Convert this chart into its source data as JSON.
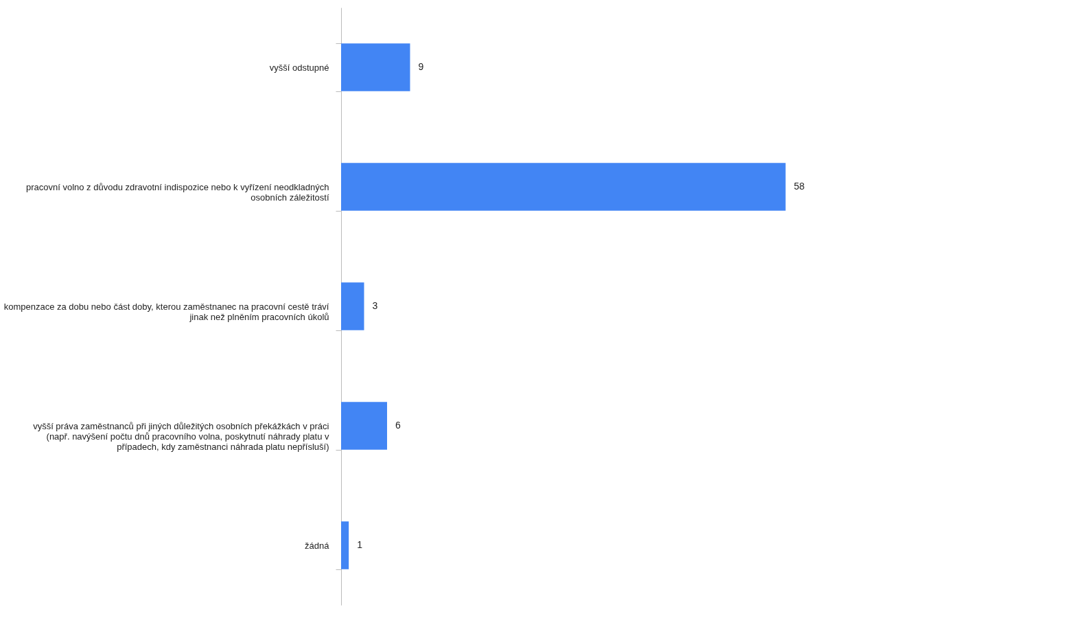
{
  "chart_data": {
    "type": "bar",
    "orientation": "horizontal",
    "categories": [
      "vyšší odstupné",
      "pracovní volno z důvodu zdravotní indispozice nebo k vyřízení neodkladných osobních záležitostí",
      "kompenzace za dobu nebo část doby, kterou zaměstnanec na pracovní cestě tráví jinak než plněním pracovních úkolů",
      "vyšší práva zaměstnanců při jiných důležitých osobních překážkách v práci (např. navýšení počtu dnů pracovního volna, poskytnutí náhrady platu v případech, kdy zaměstnanci náhrada platu nepřísluší)",
      "žádná"
    ],
    "values": [
      9,
      58,
      3,
      6,
      1
    ],
    "color": "#4285f4",
    "data_labels": true
  }
}
